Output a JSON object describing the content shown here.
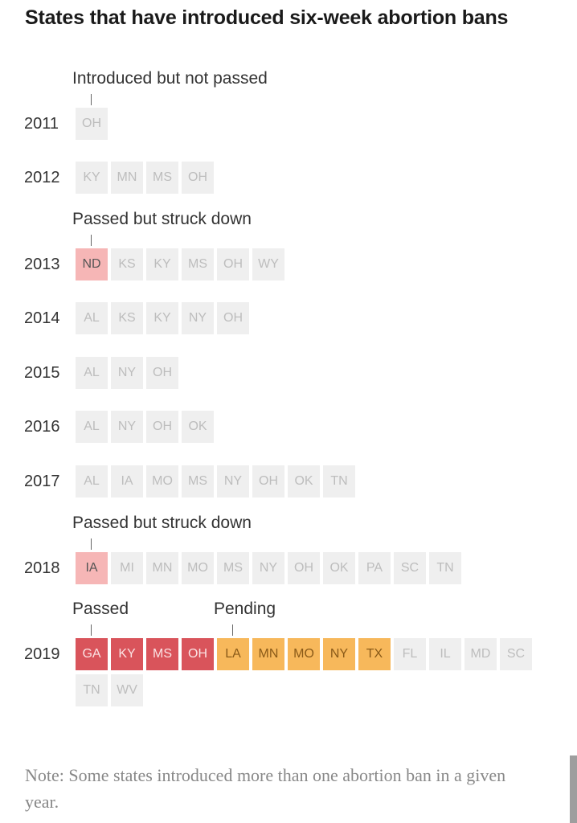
{
  "title": "States that have introduced six-week abortion bans",
  "note": "Note: Some states introduced more than one abortion ban in a given year.",
  "colors": {
    "introduced": "#efefef",
    "struck": "#f6b6b6",
    "passed": "#d9545b",
    "pending": "#f7b85b"
  },
  "chart_data": {
    "type": "table",
    "status_labels": {
      "introduced": "Introduced but not passed",
      "struck": "Passed but struck down",
      "passed": "Passed",
      "pending": "Pending"
    },
    "rows": [
      {
        "year": "2011",
        "states": [
          {
            "code": "OH",
            "status": "introduced"
          }
        ]
      },
      {
        "year": "2012",
        "states": [
          {
            "code": "KY",
            "status": "introduced"
          },
          {
            "code": "MN",
            "status": "introduced"
          },
          {
            "code": "MS",
            "status": "introduced"
          },
          {
            "code": "OH",
            "status": "introduced"
          }
        ]
      },
      {
        "year": "2013",
        "states": [
          {
            "code": "ND",
            "status": "struck"
          },
          {
            "code": "KS",
            "status": "introduced"
          },
          {
            "code": "KY",
            "status": "introduced"
          },
          {
            "code": "MS",
            "status": "introduced"
          },
          {
            "code": "OH",
            "status": "introduced"
          },
          {
            "code": "WY",
            "status": "introduced"
          }
        ]
      },
      {
        "year": "2014",
        "states": [
          {
            "code": "AL",
            "status": "introduced"
          },
          {
            "code": "KS",
            "status": "introduced"
          },
          {
            "code": "KY",
            "status": "introduced"
          },
          {
            "code": "NY",
            "status": "introduced"
          },
          {
            "code": "OH",
            "status": "introduced"
          }
        ]
      },
      {
        "year": "2015",
        "states": [
          {
            "code": "AL",
            "status": "introduced"
          },
          {
            "code": "NY",
            "status": "introduced"
          },
          {
            "code": "OH",
            "status": "introduced"
          }
        ]
      },
      {
        "year": "2016",
        "states": [
          {
            "code": "AL",
            "status": "introduced"
          },
          {
            "code": "NY",
            "status": "introduced"
          },
          {
            "code": "OH",
            "status": "introduced"
          },
          {
            "code": "OK",
            "status": "introduced"
          }
        ]
      },
      {
        "year": "2017",
        "states": [
          {
            "code": "AL",
            "status": "introduced"
          },
          {
            "code": "IA",
            "status": "introduced"
          },
          {
            "code": "MO",
            "status": "introduced"
          },
          {
            "code": "MS",
            "status": "introduced"
          },
          {
            "code": "NY",
            "status": "introduced"
          },
          {
            "code": "OH",
            "status": "introduced"
          },
          {
            "code": "OK",
            "status": "introduced"
          },
          {
            "code": "TN",
            "status": "introduced"
          }
        ]
      },
      {
        "year": "2018",
        "states": [
          {
            "code": "IA",
            "status": "struck"
          },
          {
            "code": "MI",
            "status": "introduced"
          },
          {
            "code": "MN",
            "status": "introduced"
          },
          {
            "code": "MO",
            "status": "introduced"
          },
          {
            "code": "MS",
            "status": "introduced"
          },
          {
            "code": "NY",
            "status": "introduced"
          },
          {
            "code": "OH",
            "status": "introduced"
          },
          {
            "code": "OK",
            "status": "introduced"
          },
          {
            "code": "PA",
            "status": "introduced"
          },
          {
            "code": "SC",
            "status": "introduced"
          },
          {
            "code": "TN",
            "status": "introduced"
          }
        ]
      },
      {
        "year": "2019",
        "states": [
          {
            "code": "GA",
            "status": "passed"
          },
          {
            "code": "KY",
            "status": "passed"
          },
          {
            "code": "MS",
            "status": "passed"
          },
          {
            "code": "OH",
            "status": "passed"
          },
          {
            "code": "LA",
            "status": "pending"
          },
          {
            "code": "MN",
            "status": "pending"
          },
          {
            "code": "MO",
            "status": "pending"
          },
          {
            "code": "NY",
            "status": "pending"
          },
          {
            "code": "TX",
            "status": "pending"
          },
          {
            "code": "FL",
            "status": "introduced"
          },
          {
            "code": "IL",
            "status": "introduced"
          },
          {
            "code": "MD",
            "status": "introduced"
          },
          {
            "code": "SC",
            "status": "introduced"
          },
          {
            "code": "TN",
            "status": "introduced"
          },
          {
            "code": "WV",
            "status": "introduced"
          }
        ]
      }
    ],
    "annotations": [
      {
        "year": "2011",
        "state_index": 0,
        "label": "Introduced but not passed"
      },
      {
        "year": "2013",
        "state_index": 0,
        "label": "Passed but struck down"
      },
      {
        "year": "2018",
        "state_index": 0,
        "label": "Passed but struck down"
      },
      {
        "year": "2019",
        "state_index": 0,
        "label": "Passed"
      },
      {
        "year": "2019",
        "state_index": 4,
        "label": "Pending"
      }
    ]
  }
}
